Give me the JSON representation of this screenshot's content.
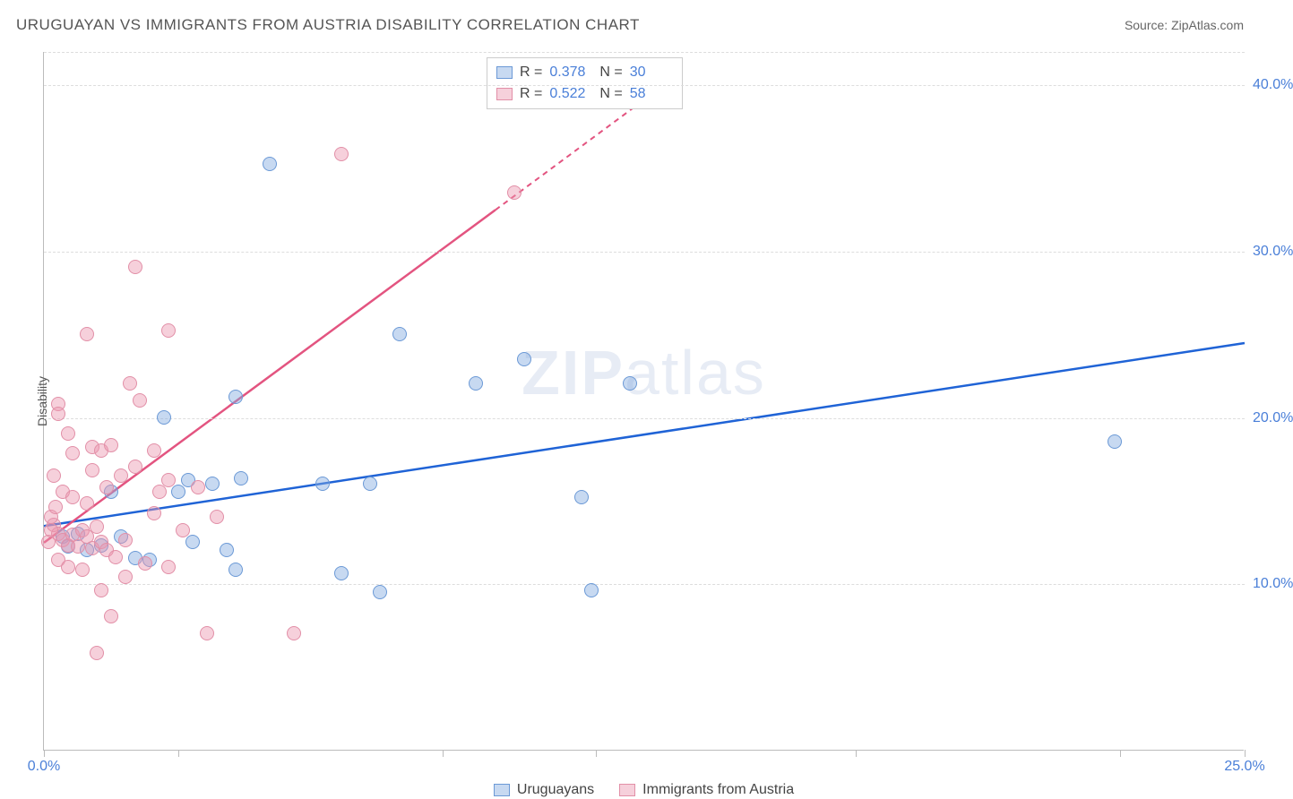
{
  "title": "URUGUAYAN VS IMMIGRANTS FROM AUSTRIA DISABILITY CORRELATION CHART",
  "source_label": "Source: ZipAtlas.com",
  "watermark": {
    "bold": "ZIP",
    "rest": "atlas"
  },
  "y_axis_title": "Disability",
  "chart": {
    "type": "scatter",
    "xlim": [
      0,
      25
    ],
    "ylim": [
      0,
      42
    ],
    "yticks": [
      10,
      20,
      30,
      40
    ],
    "ytick_labels": [
      "10.0%",
      "20.0%",
      "30.0%",
      "40.0%"
    ],
    "xticks": [
      0,
      2.8,
      8.3,
      11.5,
      16.9,
      22.4,
      25
    ],
    "xtick_labels": {
      "0": "0.0%",
      "25": "25.0%"
    },
    "background_color": "#ffffff",
    "grid_dash_color": "#dddddd",
    "axis_color": "#bbbbbb",
    "tick_label_color": "#4a7fd8",
    "marker_size": 16,
    "series": [
      {
        "name": "Uruguayans",
        "fill": "rgba(130,170,225,0.45)",
        "stroke": "#6b99d6",
        "trend_color": "#1f63d6",
        "trend": {
          "x1": 0,
          "y1": 13.5,
          "x2": 25,
          "y2": 24.5
        },
        "R": "0.378",
        "N": "30",
        "points": [
          [
            4.7,
            35.2
          ],
          [
            10.0,
            23.5
          ],
          [
            12.2,
            22.0
          ],
          [
            9.0,
            22.0
          ],
          [
            7.4,
            25.0
          ],
          [
            4.0,
            21.2
          ],
          [
            2.5,
            20.0
          ],
          [
            3.0,
            16.2
          ],
          [
            3.5,
            16.0
          ],
          [
            4.1,
            16.3
          ],
          [
            11.2,
            15.2
          ],
          [
            6.8,
            16.0
          ],
          [
            6.2,
            10.6
          ],
          [
            1.9,
            11.5
          ],
          [
            2.2,
            11.4
          ],
          [
            1.4,
            15.5
          ],
          [
            0.5,
            12.2
          ],
          [
            0.4,
            12.8
          ],
          [
            0.7,
            13.0
          ],
          [
            0.9,
            12.0
          ],
          [
            1.2,
            12.3
          ],
          [
            1.6,
            12.8
          ],
          [
            3.1,
            12.5
          ],
          [
            4.0,
            10.8
          ],
          [
            2.8,
            15.5
          ],
          [
            11.4,
            9.6
          ],
          [
            7.0,
            9.5
          ],
          [
            22.3,
            18.5
          ],
          [
            5.8,
            16.0
          ],
          [
            3.8,
            12.0
          ]
        ]
      },
      {
        "name": "Immigrants from Austria",
        "fill": "rgba(235,150,175,0.45)",
        "stroke": "#e28fa7",
        "trend_color": "#e35480",
        "trend": {
          "x1": 0,
          "y1": 12.5,
          "x2": 9.4,
          "y2": 32.5
        },
        "trend_dashed_to": {
          "x2": 12.3,
          "y2": 38.7
        },
        "R": "0.522",
        "N": "58",
        "points": [
          [
            6.2,
            35.8
          ],
          [
            9.8,
            33.5
          ],
          [
            1.9,
            29.0
          ],
          [
            0.9,
            25.0
          ],
          [
            2.6,
            25.2
          ],
          [
            1.8,
            22.0
          ],
          [
            2.0,
            21.0
          ],
          [
            0.3,
            20.8
          ],
          [
            0.3,
            20.2
          ],
          [
            0.5,
            19.0
          ],
          [
            0.6,
            17.8
          ],
          [
            1.0,
            18.2
          ],
          [
            1.2,
            18.0
          ],
          [
            1.4,
            18.3
          ],
          [
            1.0,
            16.8
          ],
          [
            0.2,
            16.5
          ],
          [
            0.4,
            15.5
          ],
          [
            0.6,
            15.2
          ],
          [
            0.9,
            14.8
          ],
          [
            1.3,
            15.8
          ],
          [
            1.6,
            16.5
          ],
          [
            1.9,
            17.0
          ],
          [
            2.3,
            18.0
          ],
          [
            2.6,
            16.2
          ],
          [
            2.3,
            14.2
          ],
          [
            2.4,
            15.5
          ],
          [
            0.2,
            13.5
          ],
          [
            0.3,
            13.0
          ],
          [
            0.4,
            12.6
          ],
          [
            0.5,
            12.3
          ],
          [
            0.6,
            12.9
          ],
          [
            0.7,
            12.2
          ],
          [
            0.8,
            13.2
          ],
          [
            0.9,
            12.8
          ],
          [
            1.0,
            12.1
          ],
          [
            1.1,
            13.4
          ],
          [
            1.2,
            12.5
          ],
          [
            1.3,
            12.0
          ],
          [
            1.5,
            11.6
          ],
          [
            1.7,
            12.6
          ],
          [
            0.3,
            11.4
          ],
          [
            0.5,
            11.0
          ],
          [
            0.8,
            10.8
          ],
          [
            1.2,
            9.6
          ],
          [
            1.7,
            10.4
          ],
          [
            2.1,
            11.2
          ],
          [
            2.6,
            11.0
          ],
          [
            1.4,
            8.0
          ],
          [
            3.4,
            7.0
          ],
          [
            5.2,
            7.0
          ],
          [
            1.1,
            5.8
          ],
          [
            3.6,
            14.0
          ],
          [
            3.2,
            15.8
          ],
          [
            2.9,
            13.2
          ],
          [
            0.1,
            12.5
          ],
          [
            0.15,
            13.2
          ],
          [
            0.15,
            14.0
          ],
          [
            0.25,
            14.6
          ]
        ]
      }
    ],
    "stats_box_label_R": "R =",
    "stats_box_label_N": "N =",
    "bottom_legend_labels": [
      "Uruguayans",
      "Immigrants from Austria"
    ]
  }
}
